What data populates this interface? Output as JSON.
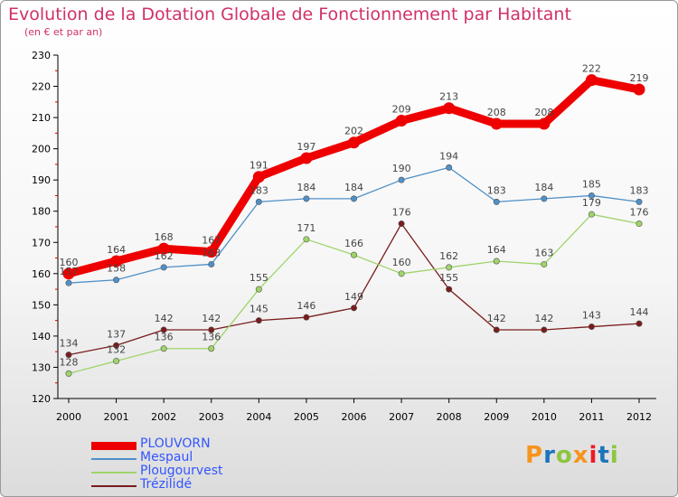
{
  "title": "Evolution de la Dotation Globale de Fonctionnement par Habitant",
  "subtitle": "(en € et par an)",
  "logo": {
    "text": "Proxiti",
    "colors": [
      "#f7941d",
      "#1b75bb",
      "#8dc63f",
      "#f7941d",
      "#ed1c24",
      "#1b75bb",
      "#8dc63f"
    ]
  },
  "chart_data": {
    "type": "line",
    "title": "Evolution de la Dotation Globale de Fonctionnement par Habitant",
    "subtitle": "(en € et par an)",
    "x": [
      "2000",
      "2001",
      "2002",
      "2003",
      "2004",
      "2005",
      "2006",
      "2007",
      "2008",
      "2009",
      "2010",
      "2011",
      "2012"
    ],
    "ylim": [
      120,
      230
    ],
    "yticks": [
      120,
      130,
      140,
      150,
      160,
      170,
      180,
      190,
      200,
      210,
      220,
      230
    ],
    "grid": false,
    "legend": "bottom-left",
    "series": [
      {
        "name": "PLOUVORN",
        "color": "#ee0000",
        "values": [
          160,
          164,
          168,
          167,
          191,
          197,
          202,
          209,
          213,
          208,
          208,
          222,
          219
        ]
      },
      {
        "name": "Mespaul",
        "color": "#4f90c8",
        "values": [
          157,
          158,
          162,
          163,
          183,
          184,
          184,
          190,
          194,
          183,
          184,
          185,
          183
        ]
      },
      {
        "name": "Plougourvest",
        "color": "#9fd46a",
        "values": [
          128,
          132,
          136,
          136,
          155,
          171,
          166,
          160,
          162,
          164,
          163,
          179,
          176
        ]
      },
      {
        "name": "Trézilidé",
        "color": "#7a1c1c",
        "values": [
          134,
          137,
          142,
          142,
          145,
          146,
          149,
          176,
          155,
          142,
          142,
          143,
          144
        ]
      }
    ]
  }
}
